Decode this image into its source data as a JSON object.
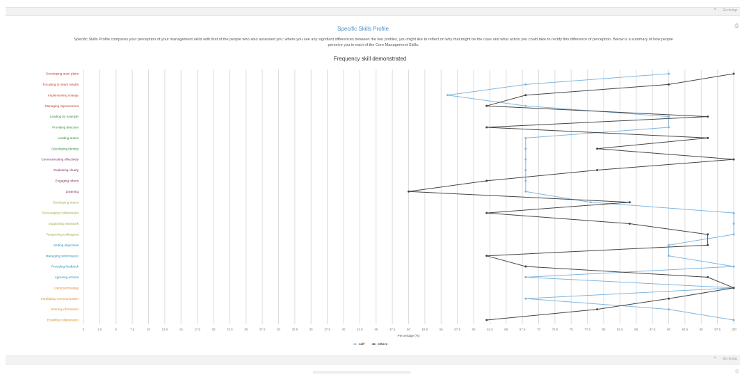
{
  "panel_top": {
    "collapse_label": "Go to top",
    "collapse_icon": "chevron-up-icon"
  },
  "panel_bottom": {
    "collapse_label": "Go to top",
    "collapse_icon": "chevron-up-icon"
  },
  "section": {
    "title": "Specific Skills Profile",
    "description_line1": "Specific Skills Profile compares your perception of your management skills with that of the people who also assessed you: where you see any signifiant differences between the two profiles, you might like to reflect on why that might be the case and what action you could take to rectify this difference of perception. Below is a summary of how people",
    "description_line2": "perceive you in each of the Core Management Skills.",
    "print_icon": "print-icon"
  },
  "chart_data": {
    "type": "line",
    "orientation": "horizontal",
    "title": "Frequency skill demonstrated",
    "xlabel": "Percentage (%)",
    "xlim": [
      0,
      100
    ],
    "x_ticks": [
      "0",
      "2.5",
      "5",
      "7.5",
      "10",
      "12.5",
      "15",
      "17.5",
      "20",
      "22.5",
      "25",
      "27.5",
      "30",
      "32.5",
      "35",
      "37.5",
      "40",
      "42.5",
      "45",
      "47.5",
      "50",
      "52.5",
      "55",
      "57.5",
      "60",
      "62.5",
      "65",
      "67.5",
      "70",
      "72.5",
      "75",
      "77.5",
      "80",
      "82.5",
      "85",
      "87.5",
      "90",
      "92.5",
      "95",
      "97.5",
      "100"
    ],
    "grid": true,
    "legend_position": "bottom-center",
    "categories": [
      {
        "label": "Developing team plans",
        "color": "#c0392b"
      },
      {
        "label": "Focusing on team results",
        "color": "#c0392b"
      },
      {
        "label": "Implementing change",
        "color": "#c0392b"
      },
      {
        "label": "Managing improvement",
        "color": "#c0392b"
      },
      {
        "label": "Leading by example",
        "color": "#2e8b3a"
      },
      {
        "label": "Providing direction",
        "color": "#2e8b3a"
      },
      {
        "label": "Leading teams",
        "color": "#2e8b3a"
      },
      {
        "label": "Developing identity",
        "color": "#2e8b3a"
      },
      {
        "label": "Communicating effectively",
        "color": "#7b2a6b"
      },
      {
        "label": "Explaining clearly",
        "color": "#7b2a6b"
      },
      {
        "label": "Engaging others",
        "color": "#7b2a6b"
      },
      {
        "label": "Listening",
        "color": "#7b2a6b"
      },
      {
        "label": "Developing teams",
        "color": "#9aa94a"
      },
      {
        "label": "Encouraging collaboration",
        "color": "#9aa94a"
      },
      {
        "label": "Supporting teamwork",
        "color": "#9aa94a"
      },
      {
        "label": "Respecting colleagues",
        "color": "#9aa94a"
      },
      {
        "label": "Setting objectives",
        "color": "#2a8fb5"
      },
      {
        "label": "Managing performance",
        "color": "#2a8fb5"
      },
      {
        "label": "Providing feedback",
        "color": "#2a8fb5"
      },
      {
        "label": "Agreeing actions",
        "color": "#2a8fb5"
      },
      {
        "label": "Using technology",
        "color": "#e08a2a"
      },
      {
        "label": "Facilitating communication",
        "color": "#e08a2a"
      },
      {
        "label": "Sharing information",
        "color": "#e08a2a"
      },
      {
        "label": "Enabling collaboration",
        "color": "#e08a2a"
      }
    ],
    "series": [
      {
        "name": "self",
        "color": "#7fb6e0",
        "values": [
          90,
          68,
          56,
          68,
          90,
          90,
          68,
          68,
          68,
          68,
          68,
          68,
          78,
          100,
          100,
          100,
          90,
          90,
          100,
          68,
          100,
          68,
          90,
          100
        ]
      },
      {
        "name": "others",
        "color": "#444444",
        "values": [
          100,
          90,
          68,
          62,
          96,
          62,
          96,
          79,
          100,
          79,
          62,
          50,
          84,
          62,
          84,
          96,
          96,
          62,
          68,
          96,
          100,
          90,
          79,
          62
        ]
      }
    ]
  }
}
